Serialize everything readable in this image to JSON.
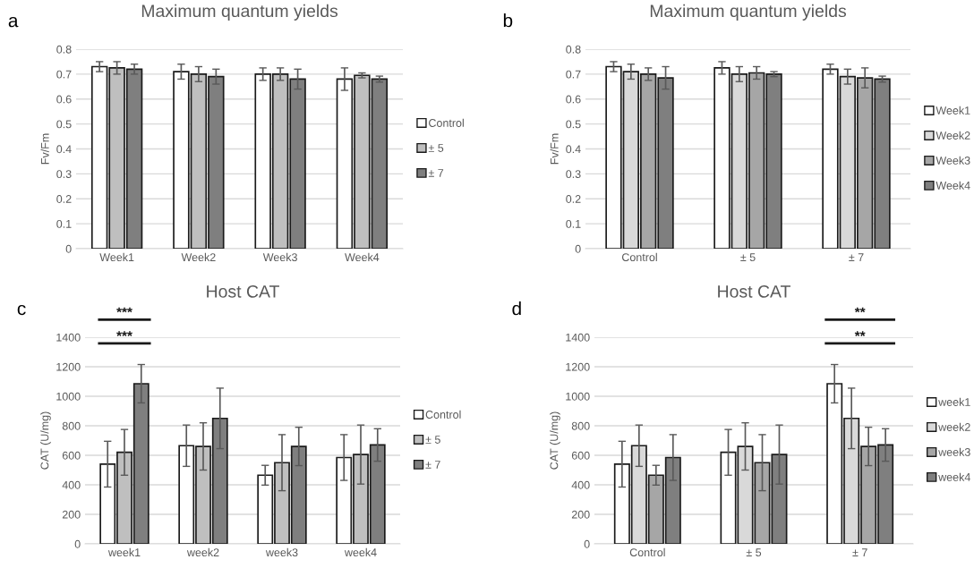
{
  "chart_data": [
    {
      "type": "bar",
      "title": "Maximum quantum yields",
      "ylabel": "Fv/Fm",
      "categories": [
        "Week1",
        "Week2",
        "Week3",
        "Week4"
      ],
      "series": [
        {
          "name": "Control",
          "color": "#ffffff",
          "values": [
            0.73,
            0.71,
            0.7,
            0.68
          ],
          "errors": [
            0.02,
            0.03,
            0.025,
            0.045
          ]
        },
        {
          "name": "± 5",
          "color": "#bfbfbf",
          "values": [
            0.725,
            0.7,
            0.7,
            0.695
          ],
          "errors": [
            0.025,
            0.03,
            0.025,
            0.01
          ]
        },
        {
          "name": "± 7",
          "color": "#7f7f7f",
          "values": [
            0.72,
            0.69,
            0.68,
            0.68
          ],
          "errors": [
            0.02,
            0.03,
            0.04,
            0.012
          ]
        }
      ],
      "ylim": [
        0,
        0.8
      ],
      "yticks": [
        0,
        0.1,
        0.2,
        0.3,
        0.4,
        0.5,
        0.6,
        0.7,
        0.8
      ],
      "grid": "y",
      "legend": "right",
      "annotations": [
        "a"
      ]
    },
    {
      "type": "bar",
      "title": "Maximum quantum yields",
      "ylabel": "Fv/Fm",
      "categories": [
        "Control",
        "± 5",
        "± 7"
      ],
      "series": [
        {
          "name": "Week1",
          "color": "#ffffff",
          "values": [
            0.73,
            0.725,
            0.72
          ],
          "errors": [
            0.02,
            0.025,
            0.02
          ]
        },
        {
          "name": "Week2",
          "color": "#d9d9d9",
          "values": [
            0.71,
            0.7,
            0.69
          ],
          "errors": [
            0.03,
            0.03,
            0.03
          ]
        },
        {
          "name": "Week3",
          "color": "#a6a6a6",
          "values": [
            0.7,
            0.705,
            0.685
          ],
          "errors": [
            0.025,
            0.025,
            0.04
          ]
        },
        {
          "name": "Week4",
          "color": "#7f7f7f",
          "values": [
            0.685,
            0.7,
            0.68
          ],
          "errors": [
            0.045,
            0.01,
            0.012
          ]
        }
      ],
      "ylim": [
        0,
        0.8
      ],
      "yticks": [
        0,
        0.1,
        0.2,
        0.3,
        0.4,
        0.5,
        0.6,
        0.7,
        0.8
      ],
      "grid": "y",
      "legend": "right",
      "annotations": [
        "b"
      ]
    },
    {
      "type": "bar",
      "title": "Host CAT",
      "ylabel": "CAT (U/mg)",
      "categories": [
        "week1",
        "week2",
        "week3",
        "week4"
      ],
      "series": [
        {
          "name": "Control",
          "color": "#ffffff",
          "values": [
            540,
            665,
            465,
            585
          ],
          "errors": [
            155,
            140,
            67,
            155
          ]
        },
        {
          "name": "± 5",
          "color": "#bfbfbf",
          "values": [
            620,
            660,
            550,
            605
          ],
          "errors": [
            155,
            160,
            190,
            200
          ]
        },
        {
          "name": "± 7",
          "color": "#7f7f7f",
          "values": [
            1085,
            850,
            660,
            670
          ],
          "errors": [
            130,
            205,
            130,
            110
          ]
        }
      ],
      "ylim": [
        0,
        1400
      ],
      "yticks": [
        0,
        200,
        400,
        600,
        800,
        1000,
        1200,
        1400
      ],
      "grid": "y",
      "legend": "right",
      "annotations": [
        "c",
        "***",
        "***"
      ]
    },
    {
      "type": "bar",
      "title": "Host CAT",
      "ylabel": "CAT (U/mg)",
      "categories": [
        "Control",
        "± 5",
        "± 7"
      ],
      "series": [
        {
          "name": "week1",
          "color": "#ffffff",
          "values": [
            540,
            620,
            1085
          ],
          "errors": [
            155,
            155,
            130
          ]
        },
        {
          "name": "week2",
          "color": "#d9d9d9",
          "values": [
            665,
            660,
            850
          ],
          "errors": [
            140,
            160,
            205
          ]
        },
        {
          "name": "week3",
          "color": "#a6a6a6",
          "values": [
            465,
            550,
            660
          ],
          "errors": [
            67,
            190,
            130
          ]
        },
        {
          "name": "week4",
          "color": "#7f7f7f",
          "values": [
            585,
            605,
            670
          ],
          "errors": [
            155,
            200,
            110
          ]
        }
      ],
      "ylim": [
        0,
        1400
      ],
      "yticks": [
        0,
        200,
        400,
        600,
        800,
        1000,
        1200,
        1400
      ],
      "grid": "y",
      "legend": "right",
      "annotations": [
        "d",
        "**",
        "**"
      ]
    }
  ]
}
